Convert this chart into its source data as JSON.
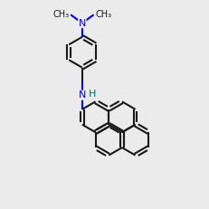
{
  "bg_color": "#ebebeb",
  "bond_color": "#1a1a1a",
  "N_color": "#0000ee",
  "H_color": "#007070",
  "line_width": 1.5,
  "font_size_N": 8,
  "font_size_H": 8,
  "font_size_Me": 7
}
